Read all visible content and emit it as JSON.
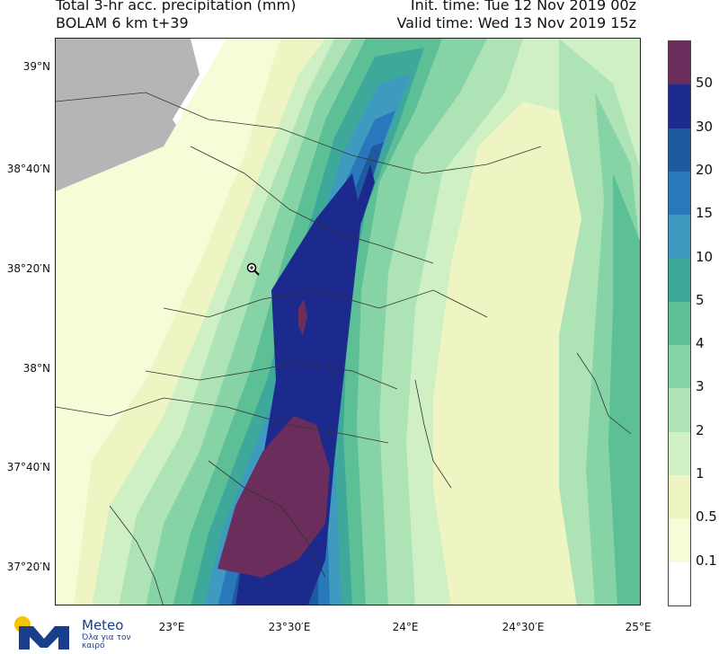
{
  "header": {
    "title_line1": "Total 3-hr acc. precipitation (mm)",
    "title_line2": "BOLAM 6 km t+39",
    "init_time": "Init. time: Tue 12 Nov 2019 00z",
    "valid_time": "Valid time: Wed 13 Nov 2019 15z"
  },
  "axes": {
    "lat_labels": [
      "39°N",
      "38°40′N",
      "38°20′N",
      "38°N",
      "37°40′N",
      "37°20′N"
    ],
    "lon_labels": [
      "23°E",
      "23°30′E",
      "24°E",
      "24°30′E",
      "25°E"
    ]
  },
  "colorbar": {
    "labels": [
      "50",
      "30",
      "20",
      "15",
      "10",
      "5",
      "4",
      "3",
      "2",
      "1",
      "0.5",
      "0.1"
    ],
    "colors": [
      "#6b2d5c",
      "#1c2a8e",
      "#1e5b9e",
      "#2878bb",
      "#3e9bbf",
      "#3ea89a",
      "#5cbf96",
      "#86d3a6",
      "#aee3b6",
      "#cff0c4",
      "#eef5c2",
      "#f7fbd8",
      "#ffffff"
    ]
  },
  "map": {
    "land_color": "#b5b5b5",
    "border_color": "#333333",
    "cursor_icon": "zoom-in-icon"
  },
  "logo": {
    "name": "Meteo",
    "tagline": "Όλα για τον καιρό",
    "icon": "meteo-logo-icon",
    "colors": {
      "sun": "#f5c400",
      "mark": "#1a3e8c"
    }
  }
}
